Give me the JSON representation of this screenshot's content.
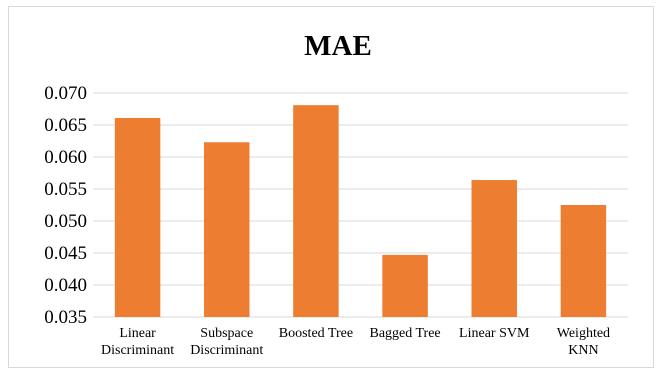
{
  "chart_data": {
    "type": "bar",
    "title": "MAE",
    "xlabel": "",
    "ylabel": "",
    "categories": [
      [
        "Linear",
        "Discriminant"
      ],
      [
        "Subspace",
        "Discriminant"
      ],
      [
        "Boosted Tree"
      ],
      [
        "Bagged Tree"
      ],
      [
        "Linear SVM"
      ],
      [
        "Weighted",
        "KNN"
      ]
    ],
    "values": [
      0.0661,
      0.0623,
      0.0681,
      0.0447,
      0.0564,
      0.0525
    ],
    "ylim": [
      0.035,
      0.07
    ],
    "yticks": [
      "0.035",
      "0.040",
      "0.045",
      "0.050",
      "0.055",
      "0.060",
      "0.065",
      "0.070"
    ],
    "ytick_values": [
      0.035,
      0.04,
      0.045,
      0.05,
      0.055,
      0.06,
      0.065,
      0.07
    ],
    "grid": true,
    "legend": "none",
    "colors": {
      "bar": "#ED7D31",
      "grid": "#D9D9D9",
      "text": "#000000"
    }
  }
}
